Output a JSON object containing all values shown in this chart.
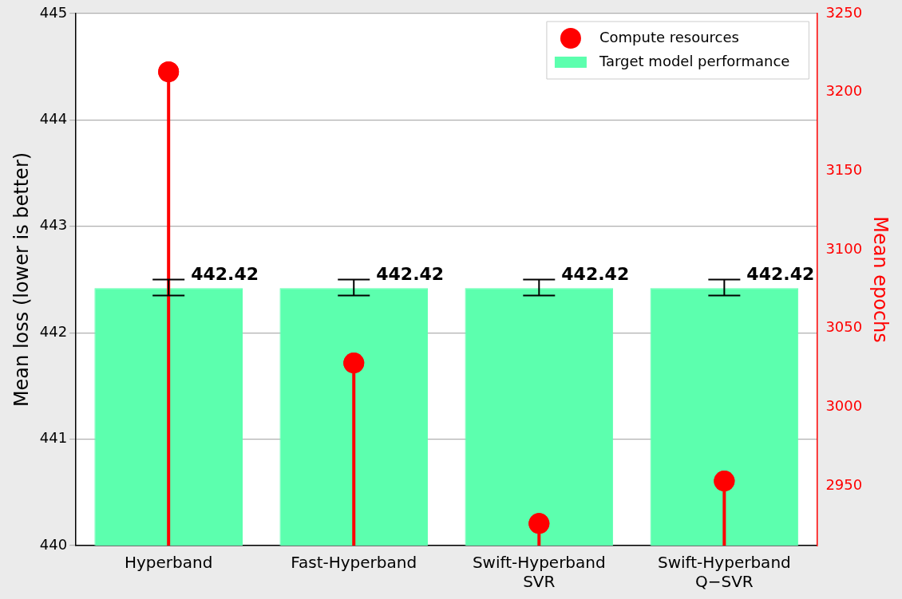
{
  "chart_data": {
    "type": "bar",
    "ylabel": "Mean loss (lower is better)",
    "y2label": "Mean epochs",
    "categories": [
      "Hyperband",
      "Fast-Hyperband",
      "Swift-Hyperband\nSVR",
      "Swift-Hyperband\nQ−SVR"
    ],
    "series": [
      {
        "name": "Compute resources",
        "type": "lollipop",
        "axis": "y2",
        "color": "#ff0000",
        "values": [
          3213,
          3028,
          2926,
          2953
        ]
      },
      {
        "name": "Target model performance",
        "type": "bar",
        "color": "#5cffae",
        "values": [
          442.42,
          442.42,
          442.42,
          442.42
        ],
        "errors": [
          [
            442.35,
            442.5
          ],
          [
            442.35,
            442.5
          ],
          [
            442.35,
            442.5
          ],
          [
            442.35,
            442.5
          ]
        ],
        "data_labels": true
      }
    ],
    "ylim": [
      440,
      445
    ],
    "yticks": [
      440,
      441,
      442,
      443,
      444,
      445
    ],
    "y2lim": [
      2912,
      3250
    ],
    "y2ticks": [
      2950,
      3000,
      3050,
      3100,
      3150,
      3200,
      3250
    ],
    "grid": "y",
    "legend": "top right",
    "marker": "circle"
  }
}
